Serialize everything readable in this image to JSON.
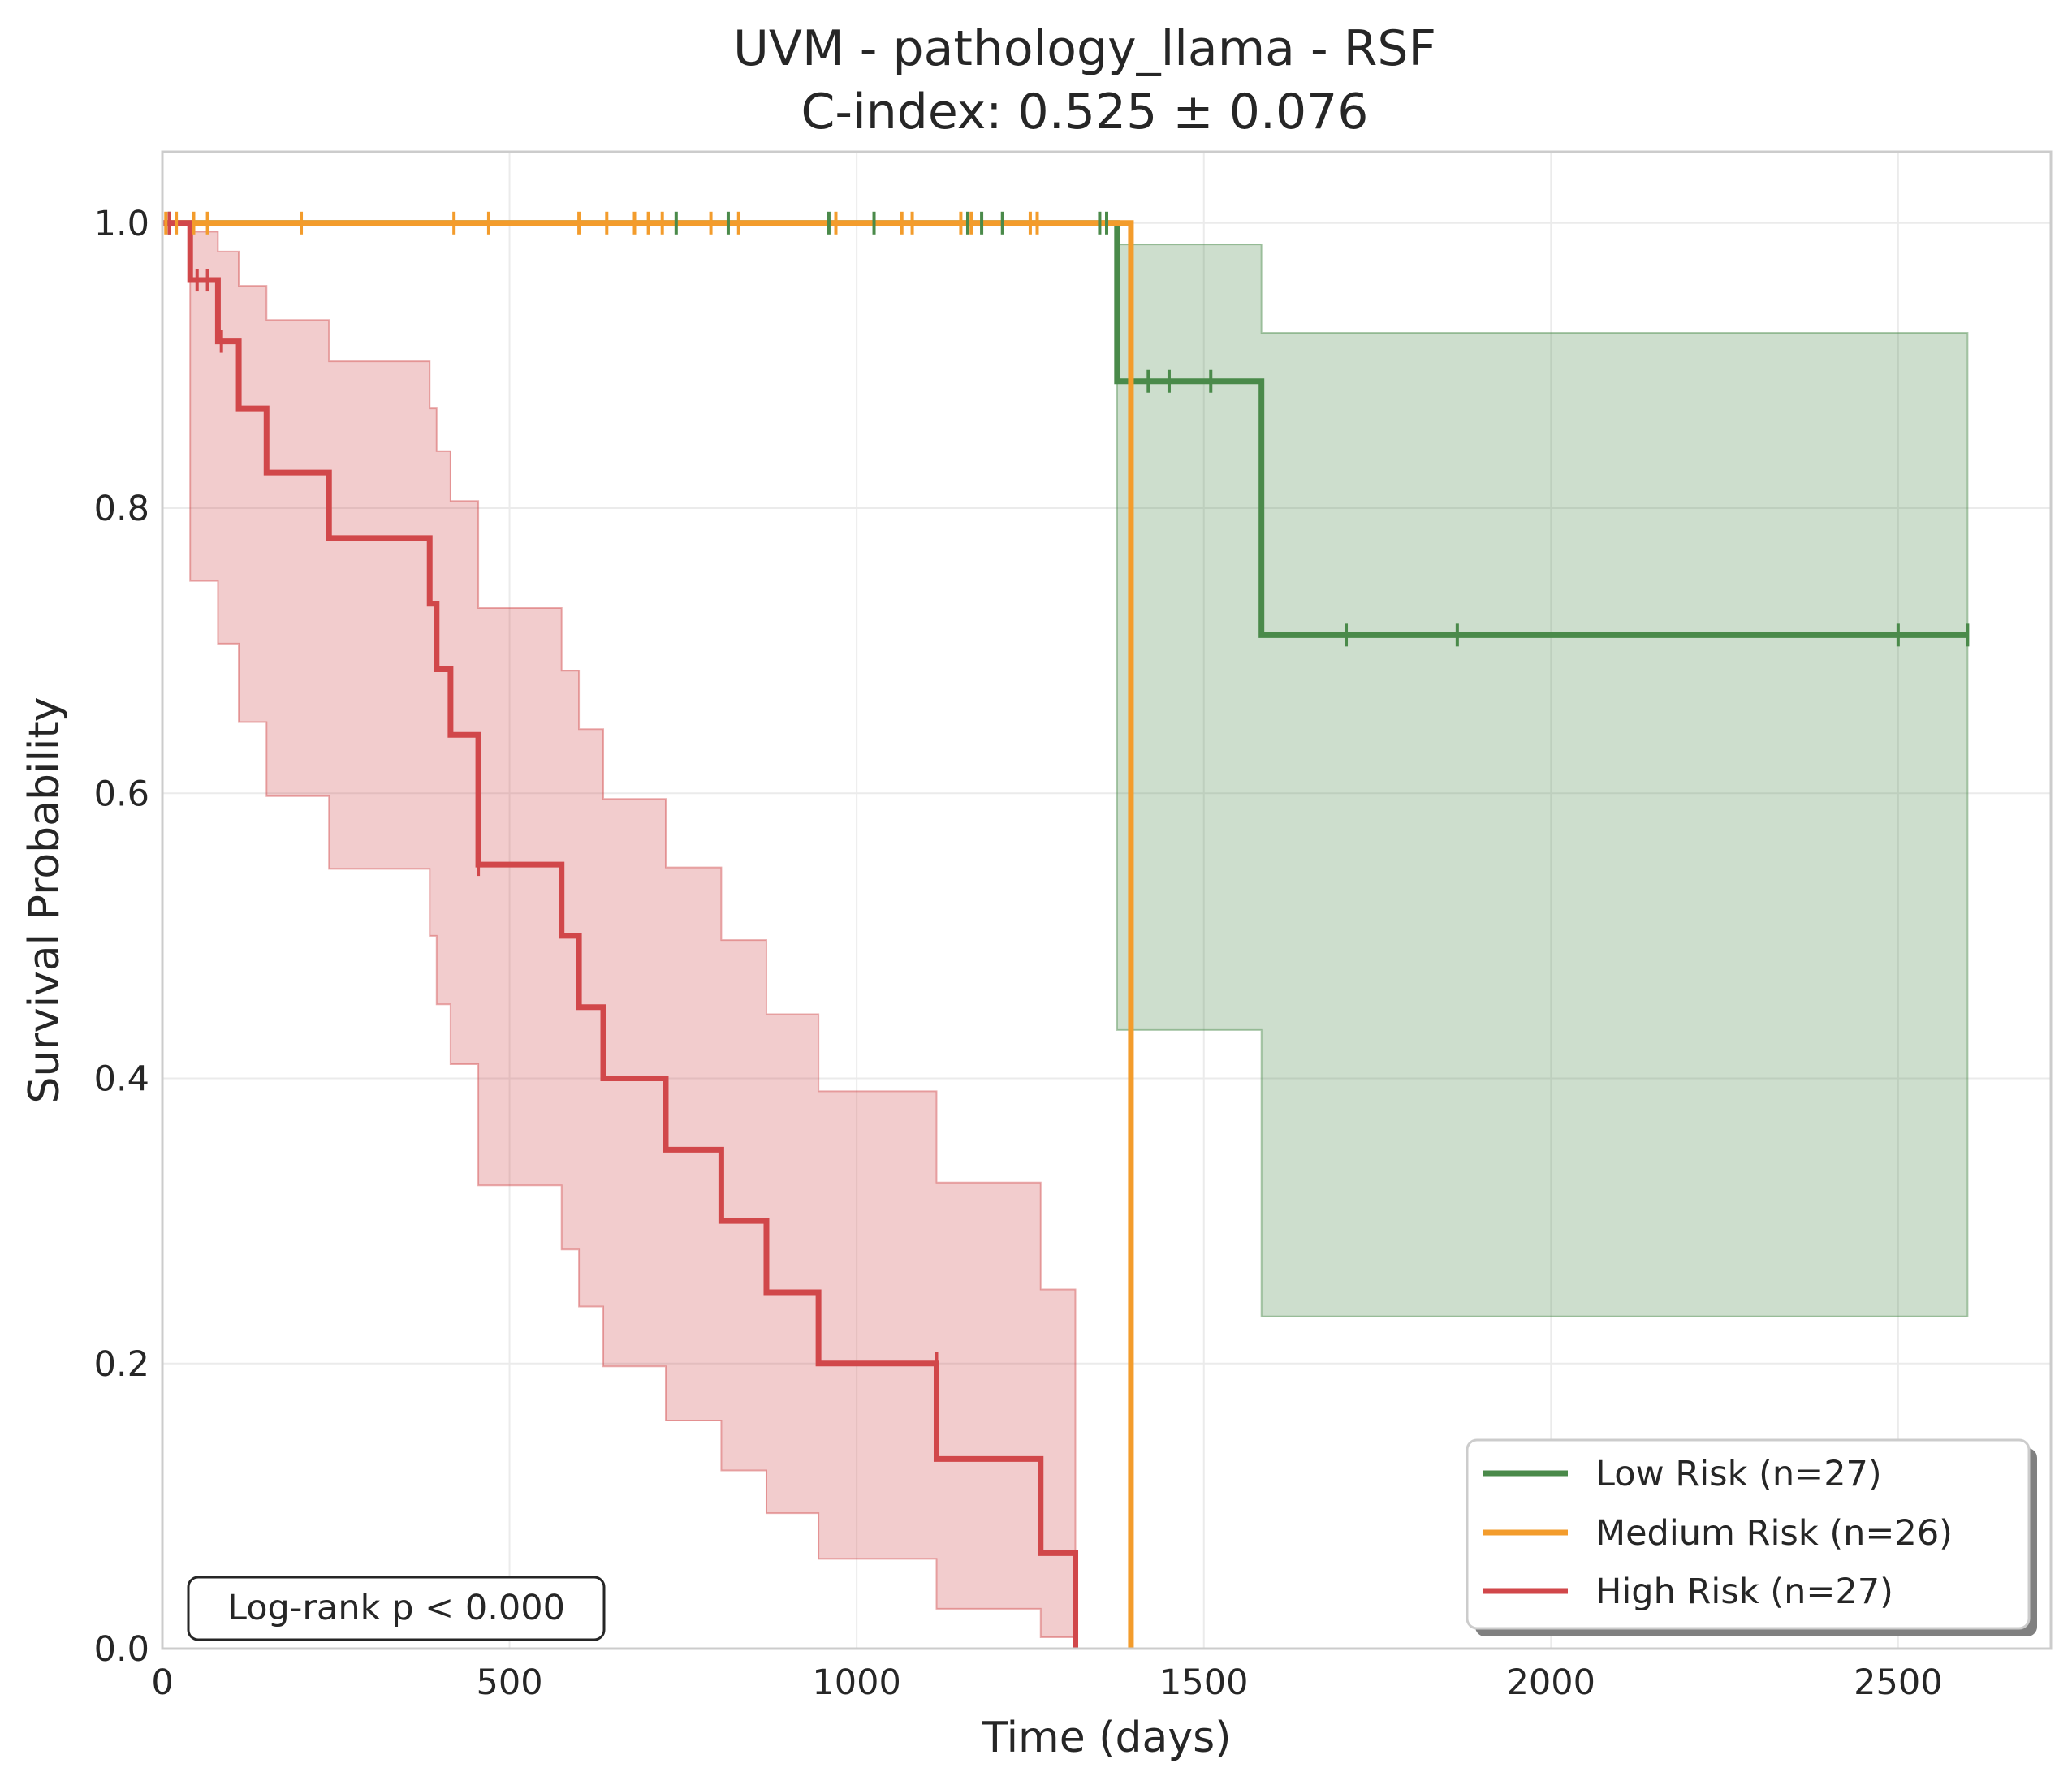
{
  "chart_data": {
    "type": "line",
    "title": "UVM - pathology_llama - RSF",
    "subtitle": "C-index: 0.525 ± 0.076",
    "xlabel": "Time (days)",
    "ylabel": "Survival Probability",
    "xlim": [
      0,
      2720
    ],
    "ylim": [
      0,
      1.05
    ],
    "xticks": [
      0,
      500,
      1000,
      1500,
      2000,
      2500
    ],
    "xtick_labels": [
      "0",
      "500",
      "1000",
      "1500",
      "2000",
      "2500"
    ],
    "yticks": [
      0,
      0.2,
      0.4,
      0.6,
      0.8,
      1.0
    ],
    "ytick_labels": [
      "0.0",
      "0.2",
      "0.4",
      "0.6",
      "0.8",
      "1.0"
    ],
    "grid": true,
    "legend_position": "lower-right",
    "annotation": "Log-rank p < 0.000",
    "series": [
      {
        "name": "Low Risk (n=27)",
        "color": "#4a8a4a",
        "steps": [
          [
            0,
            1.0
          ],
          [
            1375,
            0.889
          ],
          [
            1583,
            0.711
          ],
          [
            2600,
            0.711
          ]
        ],
        "ci": [
          [
            0,
            1.0,
            1.0
          ],
          [
            1375,
            0.434,
            0.985
          ],
          [
            1583,
            0.233,
            0.923
          ],
          [
            2600,
            0.233,
            0.923
          ]
        ],
        "censor": [
          [
            10,
            1.0
          ],
          [
            740,
            1.0
          ],
          [
            815,
            1.0
          ],
          [
            960,
            1.0
          ],
          [
            1025,
            1.0
          ],
          [
            1160,
            1.0
          ],
          [
            1180,
            1.0
          ],
          [
            1210,
            1.0
          ],
          [
            1350,
            1.0
          ],
          [
            1360,
            1.0
          ],
          [
            1420,
            0.889
          ],
          [
            1450,
            0.889
          ],
          [
            1510,
            0.889
          ],
          [
            1705,
            0.711
          ],
          [
            1865,
            0.711
          ],
          [
            2500,
            0.711
          ],
          [
            2600,
            0.711
          ]
        ]
      },
      {
        "name": "Medium Risk (n=26)",
        "color": "#f39c2c",
        "steps": [
          [
            0,
            1.0
          ],
          [
            1395,
            1.0
          ],
          [
            1395,
            0.0
          ]
        ],
        "ci": [],
        "censor": [
          [
            5,
            1.0
          ],
          [
            20,
            1.0
          ],
          [
            45,
            1.0
          ],
          [
            65,
            1.0
          ],
          [
            200,
            1.0
          ],
          [
            420,
            1.0
          ],
          [
            470,
            1.0
          ],
          [
            600,
            1.0
          ],
          [
            640,
            1.0
          ],
          [
            680,
            1.0
          ],
          [
            700,
            1.0
          ],
          [
            720,
            1.0
          ],
          [
            790,
            1.0
          ],
          [
            830,
            1.0
          ],
          [
            970,
            1.0
          ],
          [
            1065,
            1.0
          ],
          [
            1080,
            1.0
          ],
          [
            1150,
            1.0
          ],
          [
            1165,
            1.0
          ],
          [
            1250,
            1.0
          ],
          [
            1260,
            1.0
          ]
        ]
      },
      {
        "name": "High Risk (n=27)",
        "color": "#d1474a",
        "steps": [
          [
            0,
            1.0
          ],
          [
            40,
            0.96
          ],
          [
            80,
            0.917
          ],
          [
            110,
            0.87
          ],
          [
            150,
            0.825
          ],
          [
            240,
            0.779
          ],
          [
            385,
            0.733
          ],
          [
            395,
            0.687
          ],
          [
            415,
            0.641
          ],
          [
            455,
            0.55
          ],
          [
            575,
            0.5
          ],
          [
            600,
            0.45
          ],
          [
            635,
            0.4
          ],
          [
            725,
            0.35
          ],
          [
            805,
            0.3
          ],
          [
            870,
            0.25
          ],
          [
            945,
            0.2
          ],
          [
            1115,
            0.133
          ],
          [
            1265,
            0.067
          ],
          [
            1315,
            0.0
          ]
        ],
        "ci": [
          [
            0,
            1.0,
            1.0
          ],
          [
            40,
            0.749,
            0.994
          ],
          [
            80,
            0.705,
            0.98
          ],
          [
            110,
            0.65,
            0.956
          ],
          [
            150,
            0.598,
            0.932
          ],
          [
            240,
            0.547,
            0.903
          ],
          [
            385,
            0.5,
            0.87
          ],
          [
            395,
            0.452,
            0.84
          ],
          [
            415,
            0.41,
            0.805
          ],
          [
            455,
            0.325,
            0.73
          ],
          [
            575,
            0.28,
            0.686
          ],
          [
            600,
            0.24,
            0.645
          ],
          [
            635,
            0.198,
            0.596
          ],
          [
            725,
            0.16,
            0.548
          ],
          [
            805,
            0.125,
            0.497
          ],
          [
            870,
            0.095,
            0.445
          ],
          [
            945,
            0.063,
            0.391
          ],
          [
            1115,
            0.028,
            0.327
          ],
          [
            1265,
            0.008,
            0.252
          ],
          [
            1315,
            0.0,
            0.0
          ]
        ],
        "censor": [
          [
            10,
            1.0
          ],
          [
            50,
            0.96
          ],
          [
            65,
            0.96
          ],
          [
            85,
            0.917
          ],
          [
            455,
            0.55
          ],
          [
            1115,
            0.2
          ]
        ]
      }
    ]
  }
}
